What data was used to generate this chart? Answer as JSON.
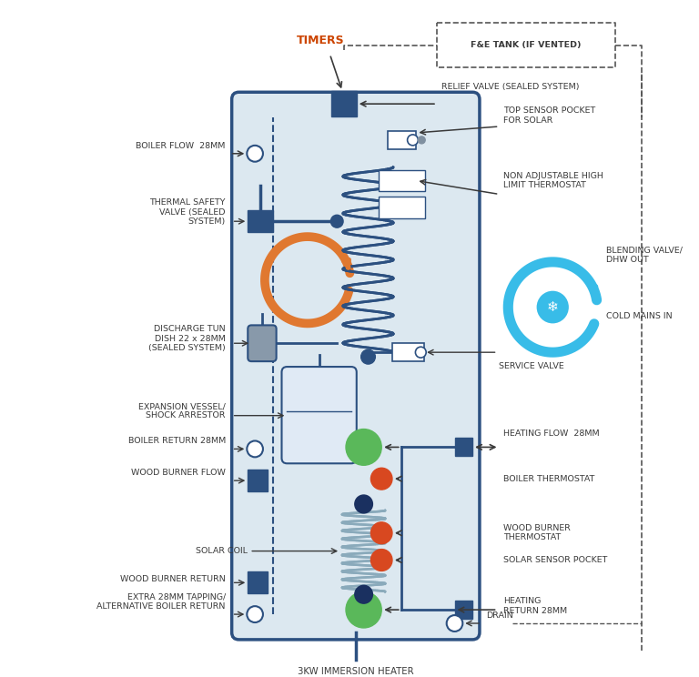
{
  "bg_color": "#ffffff",
  "tank_color": "#dce8f0",
  "tank_border_color": "#2c5080",
  "label_color": "#3a3a3a",
  "label_fontsize": 6.8,
  "arrow_color": "#3a3a3a",
  "timers_color": "#cc4400",
  "dark_blue": "#2c5080",
  "orange": "#e07830",
  "light_blue": "#38bce8",
  "green": "#5ab85a",
  "red_orange": "#d84820",
  "navy": "#1a3060",
  "coil_color": "#8aaabb",
  "upper_coil_color": "#2c5080",
  "timers_label": "TIMERS",
  "fe_tank_label": "F&E TANK (IF VENTED)",
  "relief_valve_label": "RELIEF VALVE (SEALED SYSTEM)",
  "boiler_flow_label": "BOILER FLOW  28MM",
  "thermal_safety_label": "THERMAL SAFETY\nVALVE (SEALED\nSYSTEM)",
  "discharge_label": "DISCHARGE TUN\nDISH 22 x 28MM\n(SEALED SYSTEM)",
  "expansion_vessel_label": "EXPANSION VESSEL/\nSHOCK ARRESTOR",
  "boiler_return_label": "BOILER RETURN 28MM",
  "wood_burner_flow_label": "WOOD BURNER FLOW",
  "solar_coil_label": "SOLAR COIL",
  "wood_burner_return_label": "WOOD BURNER RETURN",
  "extra_tapping_label": "EXTRA 28MM TAPPING/\nALTERNATIVE BOILER RETURN",
  "top_sensor_label": "TOP SENSOR POCKET\nFOR SOLAR",
  "non_adj_label": "NON ADJUSTABLE HIGH\nLIMIT THERMOSTAT",
  "blending_valve_label": "BLENDING VALVE/\nDHW OUT",
  "cold_mains_label": "COLD MAINS IN",
  "service_valve_label": "SERVICE VALVE",
  "heating_flow_label": "HEATING FLOW  28MM",
  "boiler_thermostat_label": "BOILER THERMOSTAT",
  "wood_burner_thermostat_label": "WOOD BURNER\nTHERMOSTAT",
  "solar_sensor_label": "SOLAR SENSOR POCKET",
  "heating_return_label": "HEATING\nRETURN 28MM",
  "drain_label": "DRAIN",
  "immersion_label": "3KW IMMERSION HEATER"
}
